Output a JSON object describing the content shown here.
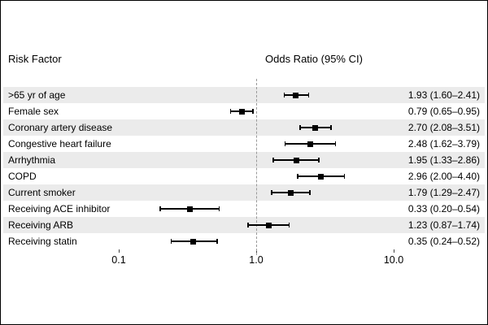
{
  "header": {
    "risk_factor": "Risk Factor",
    "odds_ratio": "Odds Ratio (95% CI)"
  },
  "chart_data": {
    "type": "forest",
    "x_scale": "log",
    "xlim": [
      0.1,
      10
    ],
    "xticks": [
      0.1,
      1,
      10
    ],
    "xtick_labels": [
      "0.1",
      "1.0",
      "10.0"
    ],
    "reference_line": 1,
    "xlabel": "",
    "legend": "none",
    "rows": [
      {
        "label": ">65 yr of age",
        "or": 1.93,
        "ci_low": 1.6,
        "ci_high": 2.41,
        "text": "1.93 (1.60–2.41)"
      },
      {
        "label": "Female sex",
        "or": 0.79,
        "ci_low": 0.65,
        "ci_high": 0.95,
        "text": "0.79 (0.65–0.95)"
      },
      {
        "label": "Coronary artery disease",
        "or": 2.7,
        "ci_low": 2.08,
        "ci_high": 3.51,
        "text": "2.70 (2.08–3.51)"
      },
      {
        "label": "Congestive heart failure",
        "or": 2.48,
        "ci_low": 1.62,
        "ci_high": 3.79,
        "text": "2.48 (1.62–3.79)"
      },
      {
        "label": "Arrhythmia",
        "or": 1.95,
        "ci_low": 1.33,
        "ci_high": 2.86,
        "text": "1.95 (1.33–2.86)"
      },
      {
        "label": "COPD",
        "or": 2.96,
        "ci_low": 2.0,
        "ci_high": 4.4,
        "text": "2.96 (2.00–4.40)"
      },
      {
        "label": "Current smoker",
        "or": 1.79,
        "ci_low": 1.29,
        "ci_high": 2.47,
        "text": "1.79 (1.29–2.47)"
      },
      {
        "label": "Receiving ACE inhibitor",
        "or": 0.33,
        "ci_low": 0.2,
        "ci_high": 0.54,
        "text": "0.33 (0.20–0.54)"
      },
      {
        "label": "Receiving ARB",
        "or": 1.23,
        "ci_low": 0.87,
        "ci_high": 1.74,
        "text": "1.23 (0.87–1.74)"
      },
      {
        "label": "Receiving statin",
        "or": 0.35,
        "ci_low": 0.24,
        "ci_high": 0.52,
        "text": "0.35 (0.24–0.52)"
      }
    ],
    "colors": {
      "stripe": "#ebebeb",
      "marker": "#000000",
      "ci": "#000000",
      "reference_line": "#999999"
    }
  }
}
